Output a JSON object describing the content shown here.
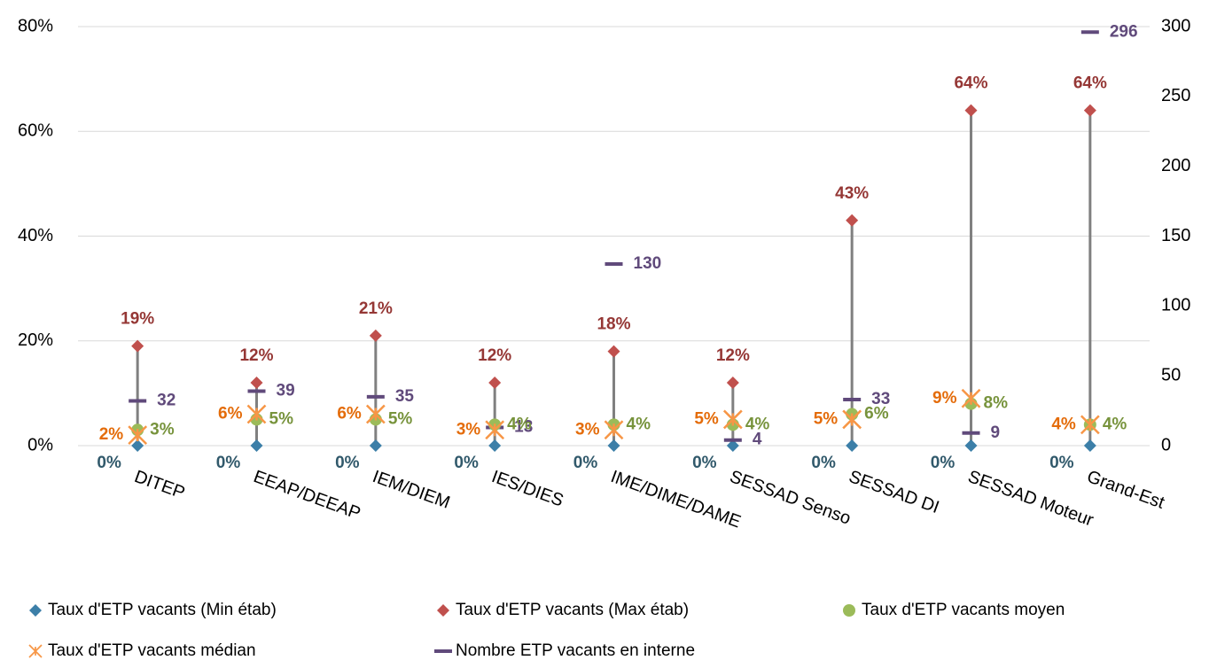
{
  "chart_data": {
    "type": "line",
    "categories": [
      "DITEP",
      "EEAP/DEEAP",
      "IEM/DIEM",
      "IES/DIES",
      "IME/DIME/DAME",
      "SESSAD Senso",
      "SESSAD DI",
      "SESSAD Moteur",
      "Grand-Est"
    ],
    "ylim": [
      0,
      80
    ],
    "yticks": [
      {
        "value": 0,
        "label": "0%"
      },
      {
        "value": 20,
        "label": "20%"
      },
      {
        "value": 40,
        "label": "40%"
      },
      {
        "value": 60,
        "label": "60%"
      },
      {
        "value": 80,
        "label": "80%"
      }
    ],
    "y2lim": [
      0,
      300
    ],
    "y2ticks": [
      0,
      50,
      100,
      150,
      200,
      250,
      300
    ],
    "grid": true,
    "high_low_lines": true,
    "legend": "bottom",
    "series": [
      {
        "name": "Taux d'ETP vacants (Min étab)",
        "color": "#3c7fa8",
        "marker": "diamond",
        "values": [
          0,
          0,
          0,
          0,
          0,
          0,
          0,
          0,
          0
        ],
        "value_labels": [
          "0%",
          "0%",
          "0%",
          "0%",
          "0%",
          "0%",
          "0%",
          "0%",
          "0%"
        ]
      },
      {
        "name": "Taux d'ETP vacants (Max étab)",
        "color": "#c0504d",
        "marker": "diamond",
        "values": [
          19,
          12,
          21,
          12,
          18,
          12,
          43,
          64,
          64
        ],
        "value_labels": [
          "19%",
          "12%",
          "21%",
          "12%",
          "18%",
          "12%",
          "43%",
          "64%",
          "64%"
        ]
      },
      {
        "name": "Taux d'ETP vacants moyen",
        "color": "#9bbb59",
        "marker": "circle",
        "values": [
          3,
          5,
          5,
          4,
          4,
          4,
          6,
          8,
          4
        ],
        "value_labels": [
          "3%",
          "5%",
          "5%",
          "4%",
          "4%",
          "4%",
          "6%",
          "8%",
          "4%"
        ]
      },
      {
        "name": "Taux d'ETP vacants médian",
        "color": "#f79646",
        "marker": "star",
        "values": [
          2,
          6,
          6,
          3,
          3,
          5,
          5,
          9,
          4
        ],
        "value_labels": [
          "2%",
          "6%",
          "6%",
          "3%",
          "3%",
          "5%",
          "5%",
          "9%",
          "4%"
        ]
      },
      {
        "name": "Nombre ETP vacants en interne",
        "color": "#604a7b",
        "marker": "dash",
        "axis": "y2",
        "values": [
          32,
          39,
          35,
          13,
          130,
          4,
          33,
          9,
          296
        ]
      }
    ]
  }
}
